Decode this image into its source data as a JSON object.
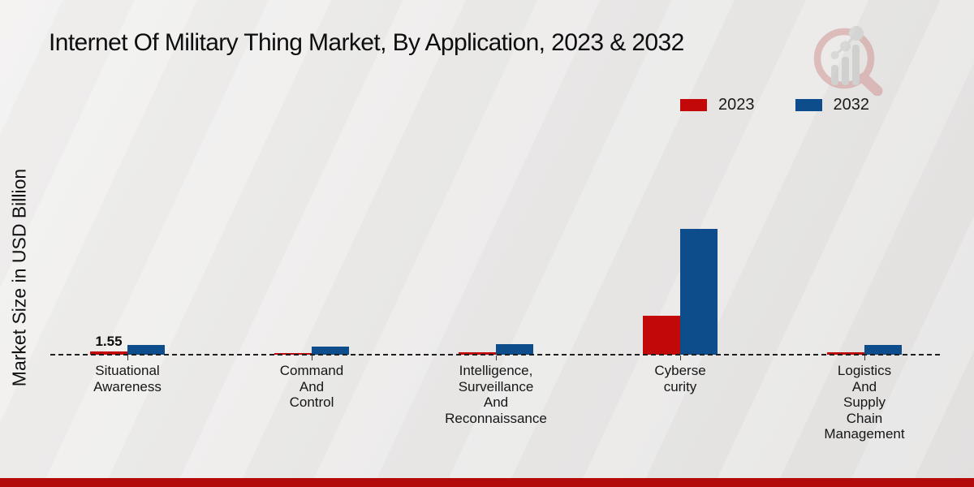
{
  "chart_data": {
    "type": "bar",
    "title": "Internet Of Military Thing Market, By Application, 2023 & 2032",
    "ylabel": "Market Size in USD Billion",
    "xlabel": "",
    "ylim": [
      0,
      70
    ],
    "grid": false,
    "legend_position": "top-right",
    "baseline": "dashed-zero-line",
    "categories": [
      "Situational Awareness",
      "Command And Control",
      "Intelligence, Surveillance And Reconnaissance",
      "Cybersecurity",
      "Logistics And Supply Chain Management"
    ],
    "category_label_lines": [
      [
        "Situational",
        "Awareness"
      ],
      [
        "Command",
        "And",
        "Control"
      ],
      [
        "Intelligence,",
        "Surveillance",
        "And",
        "Reconnaissance"
      ],
      [
        "Cyberse",
        "curity"
      ],
      [
        "Logistics",
        "And",
        "Supply",
        "Chain",
        "Management"
      ]
    ],
    "series": [
      {
        "name": "2023",
        "color": "#c20808",
        "values": [
          1.55,
          1.1,
          1.35,
          21.2,
          1.3
        ]
      },
      {
        "name": "2032",
        "color": "#0e4d8b",
        "values": [
          5.3,
          4.6,
          5.8,
          68.6,
          5.5
        ]
      }
    ],
    "annotations": [
      {
        "category_index": 0,
        "series_index": 0,
        "text": "1.55"
      }
    ]
  },
  "branding": {
    "logo_icon": "magnifier-bar-chart-logo",
    "footer_bar_color": "#b30b0b",
    "logo_ring_color": "#cf8e8e",
    "logo_bar_color": "#bdbdbd"
  }
}
